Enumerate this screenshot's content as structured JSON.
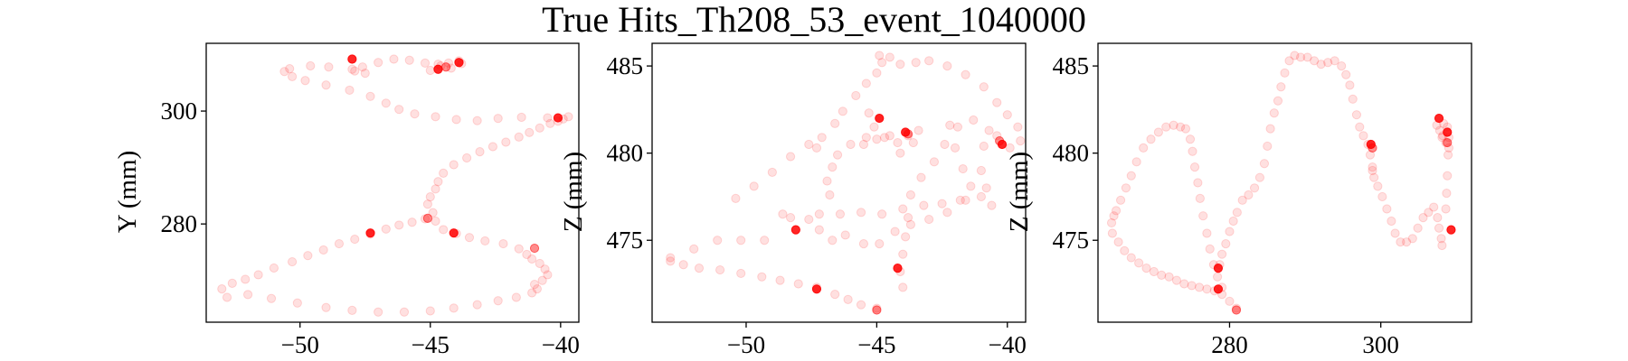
{
  "figure": {
    "title": "True Hits_Th208_53_event_1040000"
  },
  "chart_data": [
    {
      "type": "scatter",
      "title": "",
      "xlabel": "",
      "ylabel": "Y (mm)",
      "xlim": [
        -53.6,
        -39.3
      ],
      "ylim": [
        262.6,
        312.0
      ],
      "xticks": [
        -50,
        -45,
        -40
      ],
      "yticks": [
        280,
        300
      ],
      "marker_color": "#ff0000",
      "faint_alpha": 0.12,
      "points_faint": [
        [
          -53.0,
          268.5
        ],
        [
          -52.8,
          267.0
        ],
        [
          -52.6,
          269.5
        ],
        [
          -52.1,
          270.2
        ],
        [
          -51.6,
          271.0
        ],
        [
          -51.0,
          272.2
        ],
        [
          -50.3,
          273.3
        ],
        [
          -49.7,
          274.4
        ],
        [
          -49.1,
          275.4
        ],
        [
          -48.5,
          276.5
        ],
        [
          -47.9,
          277.3
        ],
        [
          -47.3,
          278.2
        ],
        [
          -46.7,
          279.1
        ],
        [
          -46.2,
          279.8
        ],
        [
          -45.7,
          280.3
        ],
        [
          -45.2,
          280.9
        ],
        [
          -52.0,
          267.5
        ],
        [
          -51.1,
          266.8
        ],
        [
          -50.1,
          266.0
        ],
        [
          -49.0,
          265.2
        ],
        [
          -48.0,
          264.7
        ],
        [
          -47.0,
          264.4
        ],
        [
          -46.0,
          264.4
        ],
        [
          -45.0,
          264.6
        ],
        [
          -44.1,
          265.1
        ],
        [
          -43.2,
          265.7
        ],
        [
          -42.4,
          266.4
        ],
        [
          -41.7,
          267.0
        ],
        [
          -41.1,
          267.8
        ],
        [
          -40.9,
          268.5
        ],
        [
          -41.0,
          269.3
        ],
        [
          -40.7,
          270.0
        ],
        [
          -40.5,
          271.0
        ],
        [
          -40.6,
          272.0
        ],
        [
          -40.8,
          273.0
        ],
        [
          -41.1,
          273.8
        ],
        [
          -41.3,
          274.6
        ],
        [
          -41.6,
          275.6
        ],
        [
          -42.2,
          276.5
        ],
        [
          -42.9,
          277.0
        ],
        [
          -43.5,
          277.6
        ],
        [
          -44.0,
          278.3
        ],
        [
          -44.5,
          279.0
        ],
        [
          -44.8,
          280.5
        ],
        [
          -44.9,
          282.0
        ],
        [
          -45.1,
          283.5
        ],
        [
          -45.0,
          284.8
        ],
        [
          -44.8,
          286.2
        ],
        [
          -44.7,
          287.5
        ],
        [
          -44.5,
          289.0
        ],
        [
          -44.1,
          290.5
        ],
        [
          -43.6,
          291.7
        ],
        [
          -43.1,
          292.8
        ],
        [
          -42.6,
          293.7
        ],
        [
          -42.1,
          294.5
        ],
        [
          -41.6,
          295.4
        ],
        [
          -41.2,
          296.2
        ],
        [
          -40.8,
          297.0
        ],
        [
          -40.4,
          297.8
        ],
        [
          -40.1,
          298.2
        ],
        [
          -39.9,
          298.6
        ],
        [
          -39.7,
          299.0
        ],
        [
          -40.5,
          298.8
        ],
        [
          -41.5,
          298.9
        ],
        [
          -42.4,
          298.7
        ],
        [
          -43.2,
          298.3
        ],
        [
          -44.0,
          298.5
        ],
        [
          -44.8,
          299.0
        ],
        [
          -45.6,
          299.5
        ],
        [
          -46.2,
          300.3
        ],
        [
          -46.7,
          301.4
        ],
        [
          -47.3,
          302.6
        ],
        [
          -48.1,
          303.7
        ],
        [
          -49.0,
          304.6
        ],
        [
          -49.8,
          305.4
        ],
        [
          -50.3,
          306.1
        ],
        [
          -50.6,
          307.0
        ],
        [
          -50.4,
          307.5
        ],
        [
          -49.6,
          308.0
        ],
        [
          -48.9,
          307.8
        ],
        [
          -48.0,
          307.4
        ],
        [
          -47.6,
          307.8
        ],
        [
          -47.0,
          308.6
        ],
        [
          -46.4,
          309.2
        ],
        [
          -45.8,
          309.0
        ],
        [
          -45.2,
          308.5
        ],
        [
          -44.7,
          308.3
        ],
        [
          -44.3,
          308.5
        ],
        [
          -43.9,
          308.9
        ],
        [
          -44.6,
          308.0
        ],
        [
          -45.0,
          307.2
        ],
        [
          -44.2,
          307.6
        ],
        [
          -43.8,
          308.4
        ],
        [
          -47.9,
          307.1
        ],
        [
          -47.5,
          306.7
        ]
      ],
      "points_bright": [
        [
          -48.0,
          309.2
        ],
        [
          -44.7,
          307.4
        ],
        [
          -43.9,
          308.6
        ],
        [
          -40.1,
          298.8
        ],
        [
          -47.3,
          278.4
        ],
        [
          -44.1,
          278.4
        ]
      ],
      "points_mid": [
        [
          -45.1,
          281.0
        ],
        [
          -41.0,
          275.7
        ],
        [
          -44.4,
          307.8
        ]
      ]
    },
    {
      "type": "scatter",
      "title": "",
      "xlabel": "",
      "ylabel": "Z (mm)",
      "xlim": [
        -53.6,
        -39.3
      ],
      "ylim": [
        470.3,
        486.3
      ],
      "xticks": [
        -50,
        -45,
        -40
      ],
      "yticks": [
        475,
        480,
        485
      ],
      "marker_color": "#ff0000",
      "faint_alpha": 0.12,
      "points_faint": [
        [
          -52.9,
          473.8
        ],
        [
          -52.4,
          473.6
        ],
        [
          -51.8,
          473.4
        ],
        [
          -51.0,
          473.3
        ],
        [
          -50.2,
          473.1
        ],
        [
          -49.4,
          472.9
        ],
        [
          -48.7,
          472.7
        ],
        [
          -48.0,
          472.5
        ],
        [
          -47.3,
          472.3
        ],
        [
          -46.6,
          471.9
        ],
        [
          -46.1,
          471.6
        ],
        [
          -45.6,
          471.3
        ],
        [
          -45.0,
          471.1
        ],
        [
          -52.9,
          474.0
        ],
        [
          -52.0,
          474.5
        ],
        [
          -51.1,
          475.0
        ],
        [
          -50.2,
          475.0
        ],
        [
          -49.3,
          475.0
        ],
        [
          -48.6,
          476.5
        ],
        [
          -48.3,
          476.3
        ],
        [
          -47.6,
          476.2
        ],
        [
          -47.2,
          476.5
        ],
        [
          -46.4,
          476.5
        ],
        [
          -45.6,
          476.6
        ],
        [
          -44.8,
          476.5
        ],
        [
          -44.0,
          476.8
        ],
        [
          -43.2,
          477.0
        ],
        [
          -42.5,
          477.1
        ],
        [
          -41.8,
          477.3
        ],
        [
          -41.0,
          477.5
        ],
        [
          -47.2,
          475.6
        ],
        [
          -46.7,
          475.0
        ],
        [
          -46.2,
          475.3
        ],
        [
          -45.5,
          474.8
        ],
        [
          -44.9,
          474.8
        ],
        [
          -44.3,
          475.5
        ],
        [
          -43.7,
          475.9
        ],
        [
          -43.0,
          476.2
        ],
        [
          -42.3,
          476.6
        ],
        [
          -41.6,
          477.3
        ],
        [
          -46.8,
          477.6
        ],
        [
          -46.9,
          478.4
        ],
        [
          -46.7,
          479.2
        ],
        [
          -46.5,
          479.9
        ],
        [
          -46.0,
          480.5
        ],
        [
          -45.4,
          480.9
        ],
        [
          -44.7,
          480.9
        ],
        [
          -44.2,
          480.6
        ],
        [
          -47.3,
          480.3
        ],
        [
          -47.1,
          480.9
        ],
        [
          -46.6,
          481.7
        ],
        [
          -46.3,
          482.4
        ],
        [
          -45.8,
          483.3
        ],
        [
          -45.4,
          484.0
        ],
        [
          -45.0,
          484.6
        ],
        [
          -44.8,
          485.2
        ],
        [
          -44.9,
          485.6
        ],
        [
          -44.5,
          485.5
        ],
        [
          -44.1,
          485.1
        ],
        [
          -43.5,
          485.2
        ],
        [
          -43.0,
          485.3
        ],
        [
          -42.3,
          485.0
        ],
        [
          -41.6,
          484.5
        ],
        [
          -40.9,
          483.8
        ],
        [
          -40.4,
          482.9
        ],
        [
          -40.0,
          482.2
        ],
        [
          -39.6,
          481.5
        ],
        [
          -39.5,
          480.7
        ],
        [
          -39.9,
          480.3
        ],
        [
          -40.7,
          481.3
        ],
        [
          -41.3,
          481.9
        ],
        [
          -41.9,
          481.5
        ],
        [
          -42.4,
          480.5
        ],
        [
          -42.8,
          479.5
        ],
        [
          -43.3,
          478.6
        ],
        [
          -43.7,
          477.6
        ],
        [
          -43.8,
          476.3
        ],
        [
          -43.9,
          475.2
        ],
        [
          -44.0,
          474.2
        ],
        [
          -44.1,
          473.2
        ],
        [
          -44.0,
          472.3
        ],
        [
          -45.0,
          480.8
        ],
        [
          -44.5,
          481.0
        ],
        [
          -43.8,
          481.0
        ],
        [
          -43.4,
          481.3
        ],
        [
          -45.1,
          481.5
        ],
        [
          -45.5,
          480.5
        ],
        [
          -44.9,
          482.0
        ],
        [
          -45.3,
          482.3
        ],
        [
          -43.6,
          480.6
        ],
        [
          -44.1,
          480.0
        ],
        [
          -50.4,
          477.4
        ],
        [
          -49.7,
          478.1
        ],
        [
          -49.0,
          478.9
        ],
        [
          -48.3,
          479.8
        ],
        [
          -47.6,
          480.5
        ],
        [
          -41.4,
          478.1
        ],
        [
          -41.7,
          479.1
        ],
        [
          -42.0,
          480.3
        ],
        [
          -42.2,
          481.6
        ],
        [
          -40.4,
          481.0
        ],
        [
          -40.9,
          480.4
        ],
        [
          -41.0,
          479.0
        ],
        [
          -40.8,
          478.0
        ],
        [
          -40.6,
          477.0
        ]
      ],
      "points_bright": [
        [
          -44.9,
          482.0
        ],
        [
          -43.9,
          481.2
        ],
        [
          -40.2,
          480.5
        ],
        [
          -48.1,
          475.6
        ],
        [
          -44.2,
          473.4
        ],
        [
          -47.3,
          472.2
        ]
      ],
      "points_mid": [
        [
          -45.0,
          471.0
        ],
        [
          -43.8,
          481.1
        ],
        [
          -40.3,
          480.7
        ]
      ]
    },
    {
      "type": "scatter",
      "title": "",
      "xlabel": "",
      "ylabel": "Z (mm)",
      "xlim": [
        262.6,
        312.0
      ],
      "ylim": [
        470.3,
        486.3
      ],
      "xticks": [
        280,
        300
      ],
      "yticks": [
        475,
        480,
        485
      ],
      "marker_color": "#ff0000",
      "faint_alpha": 0.12,
      "points_faint": [
        [
          264.4,
          476.0
        ],
        [
          264.7,
          476.4
        ],
        [
          265.0,
          476.7
        ],
        [
          265.6,
          477.3
        ],
        [
          266.3,
          478.0
        ],
        [
          267.0,
          478.7
        ],
        [
          267.7,
          479.5
        ],
        [
          268.6,
          480.3
        ],
        [
          269.6,
          480.8
        ],
        [
          270.6,
          481.2
        ],
        [
          271.6,
          481.5
        ],
        [
          272.6,
          481.6
        ],
        [
          273.5,
          481.5
        ],
        [
          274.2,
          481.4
        ],
        [
          264.5,
          475.4
        ],
        [
          265.3,
          474.9
        ],
        [
          266.1,
          474.4
        ],
        [
          267.0,
          474.0
        ],
        [
          268.0,
          473.7
        ],
        [
          269.0,
          473.4
        ],
        [
          270.0,
          473.2
        ],
        [
          271.0,
          473.0
        ],
        [
          272.0,
          472.9
        ],
        [
          273.0,
          472.7
        ],
        [
          274.0,
          472.5
        ],
        [
          275.0,
          472.4
        ],
        [
          276.0,
          472.3
        ],
        [
          277.0,
          472.2
        ],
        [
          278.0,
          472.1
        ],
        [
          279.0,
          471.9
        ],
        [
          280.0,
          471.5
        ],
        [
          280.9,
          471.1
        ],
        [
          274.8,
          480.8
        ],
        [
          275.1,
          480.1
        ],
        [
          275.4,
          479.2
        ],
        [
          275.8,
          478.3
        ],
        [
          276.1,
          477.4
        ],
        [
          276.5,
          476.4
        ],
        [
          277.0,
          475.4
        ],
        [
          277.4,
          474.5
        ],
        [
          277.9,
          473.6
        ],
        [
          278.4,
          472.9
        ],
        [
          279.0,
          472.3
        ],
        [
          278.7,
          473.6
        ],
        [
          279.0,
          474.2
        ],
        [
          279.5,
          474.8
        ],
        [
          280.0,
          475.5
        ],
        [
          280.5,
          476.1
        ],
        [
          281.0,
          476.6
        ],
        [
          281.7,
          477.3
        ],
        [
          282.5,
          477.6
        ],
        [
          283.3,
          478.0
        ],
        [
          284.0,
          478.6
        ],
        [
          284.6,
          479.4
        ],
        [
          285.0,
          480.4
        ],
        [
          285.4,
          481.4
        ],
        [
          285.9,
          482.3
        ],
        [
          286.4,
          483.0
        ],
        [
          286.8,
          483.8
        ],
        [
          287.3,
          484.6
        ],
        [
          287.9,
          485.3
        ],
        [
          288.6,
          485.6
        ],
        [
          289.4,
          485.5
        ],
        [
          290.3,
          485.5
        ],
        [
          291.2,
          485.3
        ],
        [
          292.1,
          485.1
        ],
        [
          293.0,
          485.2
        ],
        [
          293.9,
          485.3
        ],
        [
          294.8,
          485.0
        ],
        [
          295.4,
          484.5
        ],
        [
          295.9,
          483.9
        ],
        [
          296.3,
          483.1
        ],
        [
          296.8,
          482.2
        ],
        [
          297.2,
          481.5
        ],
        [
          297.7,
          481.0
        ],
        [
          298.3,
          480.5
        ],
        [
          298.6,
          479.9
        ],
        [
          298.9,
          479.2
        ],
        [
          299.1,
          478.6
        ],
        [
          299.6,
          478.1
        ],
        [
          300.2,
          477.5
        ],
        [
          300.8,
          476.8
        ],
        [
          301.4,
          476.1
        ],
        [
          301.9,
          475.4
        ],
        [
          302.6,
          474.9
        ],
        [
          303.4,
          474.9
        ],
        [
          304.2,
          475.1
        ],
        [
          304.9,
          475.7
        ],
        [
          305.6,
          476.3
        ],
        [
          306.3,
          476.6
        ],
        [
          307.0,
          476.9
        ],
        [
          307.5,
          476.3
        ],
        [
          307.7,
          475.7
        ],
        [
          308.0,
          475.1
        ],
        [
          308.1,
          474.7
        ],
        [
          307.4,
          481.6
        ],
        [
          307.8,
          481.3
        ],
        [
          308.1,
          480.9
        ],
        [
          308.6,
          480.6
        ],
        [
          309.0,
          480.9
        ],
        [
          309.0,
          480.3
        ],
        [
          308.9,
          479.9
        ],
        [
          308.8,
          478.7
        ],
        [
          308.7,
          477.7
        ],
        [
          308.6,
          476.8
        ],
        [
          308.3,
          481.7
        ],
        [
          308.8,
          481.5
        ],
        [
          308.2,
          481.0
        ],
        [
          298.9,
          479.0
        ]
      ],
      "points_bright": [
        [
          307.7,
          482.0
        ],
        [
          308.8,
          481.2
        ],
        [
          298.7,
          480.5
        ],
        [
          309.3,
          475.6
        ],
        [
          278.5,
          473.4
        ],
        [
          278.5,
          472.2
        ]
      ],
      "points_mid": [
        [
          280.9,
          471.0
        ],
        [
          308.8,
          480.6
        ],
        [
          298.9,
          480.3
        ]
      ]
    }
  ]
}
